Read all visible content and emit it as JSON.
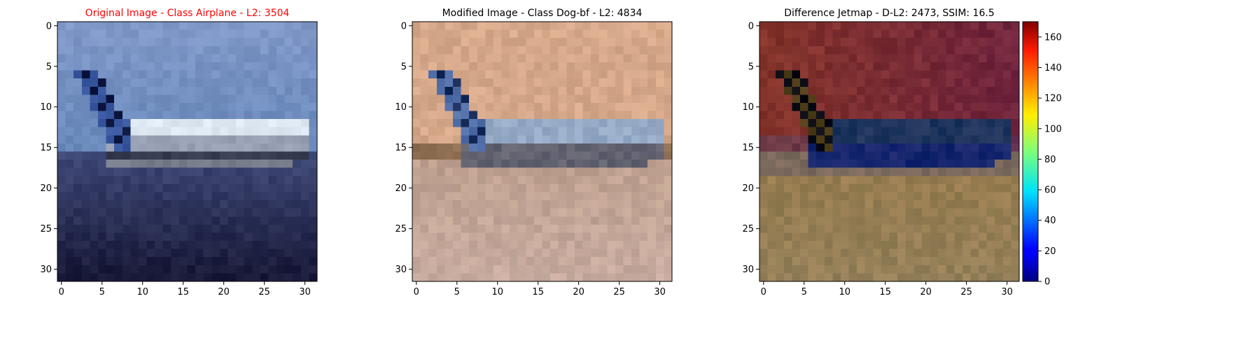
{
  "chart_data": [
    {
      "type": "heatmap",
      "title": "Original Image - Class Airplane - L2: 3504",
      "title_color": "#ff0000",
      "image_kind": "original",
      "grid_size": [
        32,
        32
      ],
      "xlim": [
        -0.5,
        31.5
      ],
      "ylim": [
        31.5,
        -0.5
      ],
      "x_ticks": [
        0,
        5,
        10,
        15,
        20,
        25,
        30
      ],
      "y_ticks": [
        0,
        5,
        10,
        15,
        20,
        25,
        30
      ],
      "grid": false
    },
    {
      "type": "heatmap",
      "title": "Modified Image - Class Dog-bf - L2: 4834",
      "title_color": "#000000",
      "image_kind": "modified",
      "grid_size": [
        32,
        32
      ],
      "xlim": [
        -0.5,
        31.5
      ],
      "ylim": [
        31.5,
        -0.5
      ],
      "x_ticks": [
        0,
        5,
        10,
        15,
        20,
        25,
        30
      ],
      "y_ticks": [
        0,
        5,
        10,
        15,
        20,
        25,
        30
      ],
      "grid": false
    },
    {
      "type": "heatmap",
      "title": "Difference Jetmap - D-L2: 2473, SSIM: 16.5",
      "title_color": "#000000",
      "image_kind": "difference",
      "grid_size": [
        32,
        32
      ],
      "xlim": [
        -0.5,
        31.5
      ],
      "ylim": [
        31.5,
        -0.5
      ],
      "x_ticks": [
        0,
        5,
        10,
        15,
        20,
        25,
        30
      ],
      "y_ticks": [
        0,
        5,
        10,
        15,
        20,
        25,
        30
      ],
      "grid": false,
      "colorbar": {
        "colormap": "jet",
        "range": [
          0,
          170
        ],
        "ticks": [
          0,
          20,
          40,
          60,
          80,
          100,
          120,
          140,
          160
        ]
      }
    }
  ]
}
